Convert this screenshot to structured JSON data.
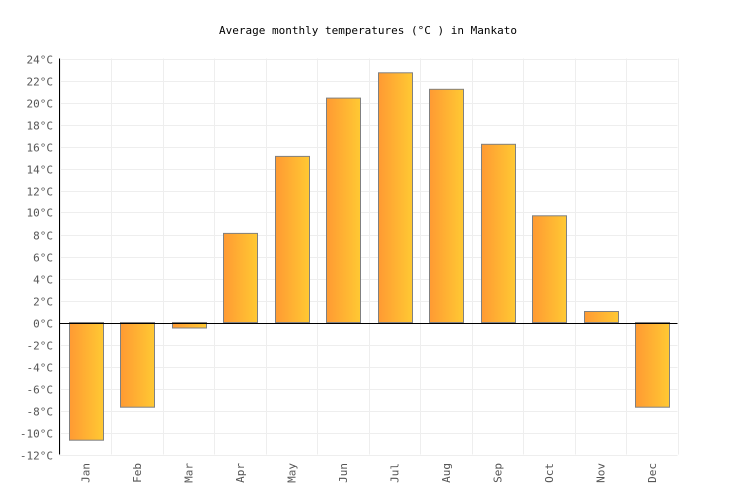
{
  "chart_data": {
    "type": "bar",
    "title": "Average monthly temperatures (°C ) in Mankato",
    "xlabel": "",
    "ylabel": "",
    "categories": [
      "Jan",
      "Feb",
      "Mar",
      "Apr",
      "May",
      "Jun",
      "Jul",
      "Aug",
      "Sep",
      "Oct",
      "Nov",
      "Dec"
    ],
    "values": [
      -10.7,
      -7.7,
      -0.5,
      8.1,
      15.1,
      20.4,
      22.7,
      21.2,
      16.2,
      9.7,
      1.0,
      -7.7
    ],
    "ylim": [
      -12,
      24
    ],
    "ytick_step": 2,
    "ytick_suffix": "°C",
    "grid": true,
    "colors": {
      "bar_left": "#ff9a33",
      "bar_right": "#ffc933",
      "bar_border": "#808080",
      "grid": "#eeeeee",
      "zero_line": "#000000"
    }
  }
}
